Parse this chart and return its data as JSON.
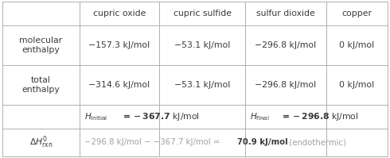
{
  "col_headers": [
    "cupric oxide",
    "cupric sulfide",
    "sulfur dioxide",
    "copper"
  ],
  "row1_label": "molecular\nenthalpy",
  "row2_label": "total\nenthalpy",
  "row1_vals": [
    "−157.3 kJ/mol",
    "−53.1 kJ/mol",
    "−296.8 kJ/mol",
    "0 kJ/mol"
  ],
  "row2_vals": [
    "−314.6 kJ/mol",
    "−53.1 kJ/mol",
    "−296.8 kJ/mol",
    "0 kJ/mol"
  ],
  "hinit_text": " = −367.7 kJ/mol",
  "hfinal_text": " = −296.8 kJ/mol",
  "eq_prefix": "−296.8 kJ/mol − −367.7 kJ/mol = ",
  "eq_bold": "70.9 kJ/mol",
  "eq_suffix": " (endothermic)",
  "bg_color": "#ffffff",
  "text_color": "#3a3a3a",
  "grid_color": "#b0b0b0",
  "fig_w": 4.9,
  "fig_h": 1.99,
  "dpi": 100
}
